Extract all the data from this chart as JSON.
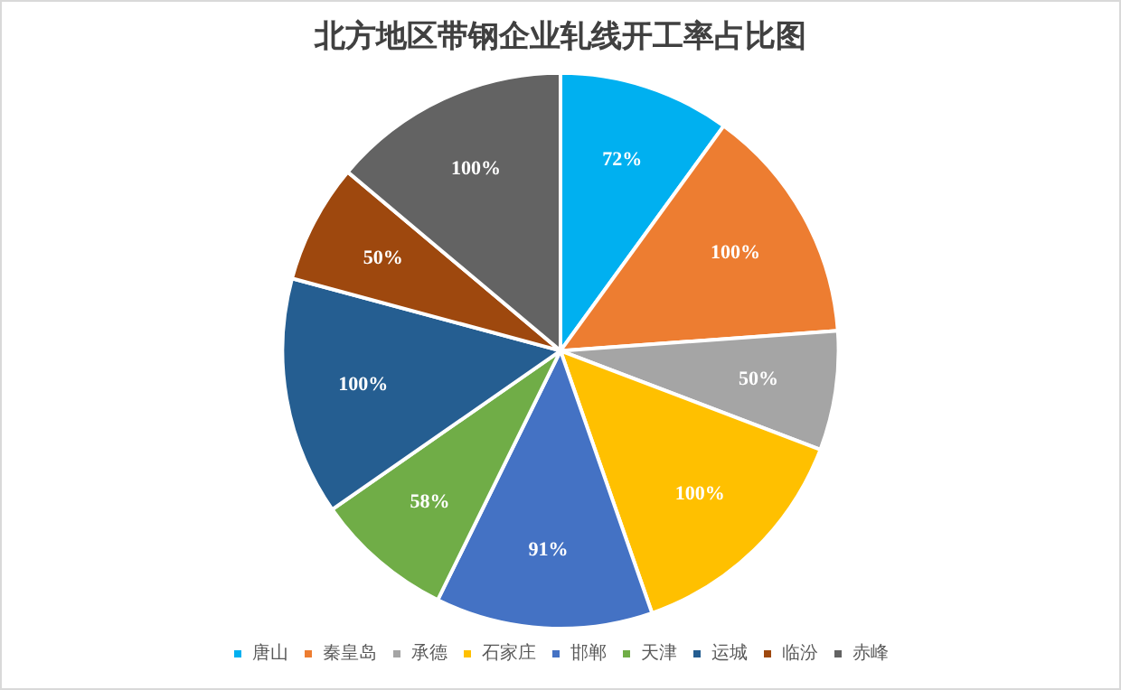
{
  "chart_data": {
    "type": "pie",
    "title": "北方地区带钢企业轧线开工率占比图",
    "categories": [
      "唐山",
      "秦皇岛",
      "承德",
      "石家庄",
      "邯郸",
      "天津",
      "运城",
      "临汾",
      "赤峰"
    ],
    "values": [
      72,
      100,
      50,
      100,
      91,
      58,
      100,
      50,
      100
    ],
    "value_labels": [
      "72%",
      "100%",
      "50%",
      "100%",
      "91%",
      "58%",
      "100%",
      "50%",
      "100%"
    ],
    "colors": [
      "#00b0f0",
      "#ed7d31",
      "#a5a5a5",
      "#ffc000",
      "#4472c4",
      "#70ad47",
      "#255e91",
      "#9e480e",
      "#636363"
    ],
    "legend": "bottom"
  }
}
